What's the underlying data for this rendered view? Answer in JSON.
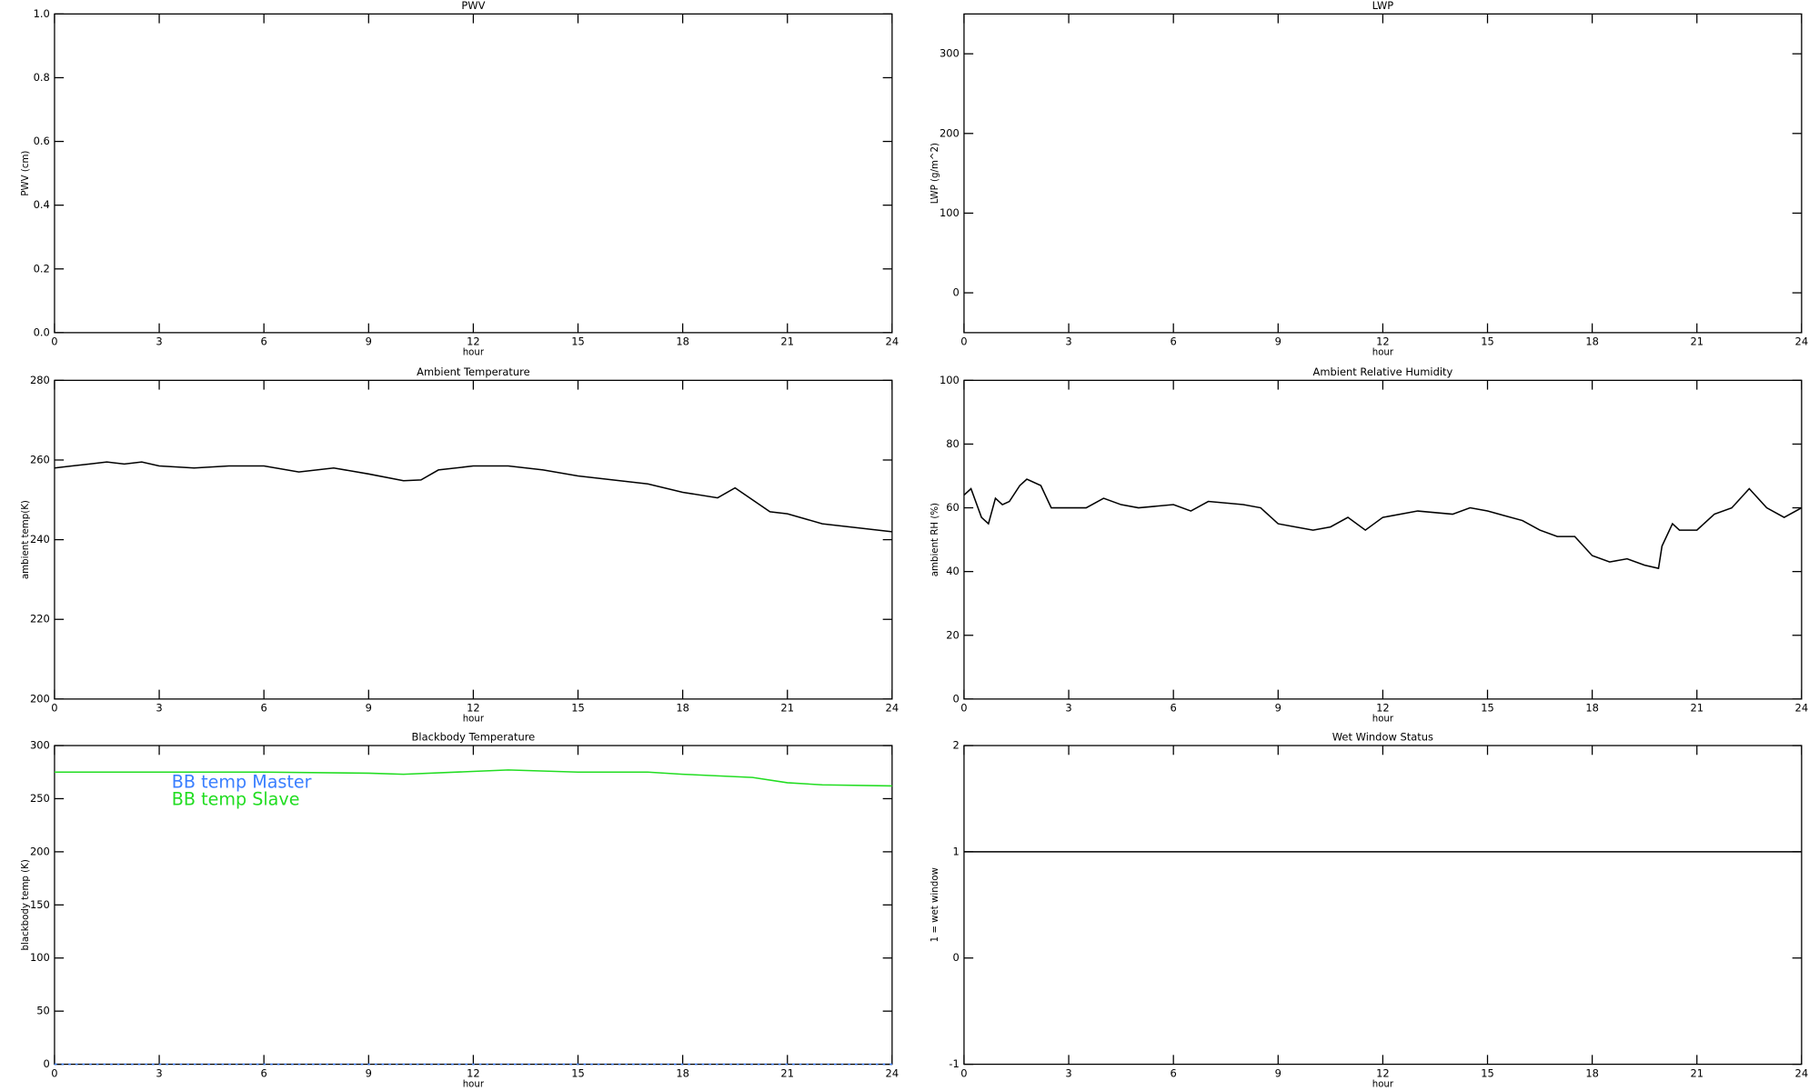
{
  "chart_data": [
    {
      "type": "line",
      "title": "PWV",
      "xlabel": "hour",
      "ylabel": "PWV (cm)",
      "xlim": [
        0,
        24
      ],
      "xticks": [
        0,
        3,
        6,
        9,
        12,
        15,
        18,
        21,
        24
      ],
      "ylim": [
        0,
        1
      ],
      "yticks": [
        {
          "value": 0,
          "label": "0.0"
        },
        0.2,
        0.4,
        0.6,
        0.8,
        {
          "value": 1,
          "label": "1.0"
        }
      ]
    },
    {
      "type": "line",
      "title": "LWP",
      "xlabel": "hour",
      "ylabel": "LWP (g/m^2)",
      "xlim": [
        0,
        24
      ],
      "xticks": [
        0,
        3,
        6,
        9,
        12,
        15,
        18,
        21,
        24
      ],
      "ylim": [
        -50,
        350
      ],
      "yticks": [
        0,
        100,
        200,
        300
      ]
    },
    {
      "type": "line",
      "title": "Ambient Temperature",
      "xlabel": "hour",
      "ylabel": "ambient temp(K)",
      "xlim": [
        0,
        24
      ],
      "xticks": [
        0,
        3,
        6,
        9,
        12,
        15,
        18,
        21,
        24
      ],
      "ylim": [
        200,
        280
      ],
      "yticks": [
        200,
        220,
        240,
        260,
        280
      ],
      "x": [
        0,
        0.5,
        1,
        1.5,
        2,
        2.5,
        3,
        4,
        5,
        6,
        7,
        8,
        9,
        10,
        10.5,
        11,
        12,
        13,
        14,
        15,
        16,
        17,
        18,
        19,
        19.5,
        20,
        20.5,
        21,
        22,
        23,
        24
      ],
      "series": [
        {
          "color": "#000000",
          "values": [
            258,
            258.5,
            259,
            259.5,
            259,
            259.5,
            258.5,
            258,
            258.5,
            258.5,
            257,
            258,
            256.5,
            254.8,
            255,
            257.5,
            258.5,
            258.5,
            257.5,
            256,
            255,
            254,
            251.9,
            250.5,
            253,
            250,
            247,
            246.5,
            244,
            243,
            242
          ]
        }
      ]
    },
    {
      "type": "line",
      "title": "Ambient Relative Humidity",
      "xlabel": "hour",
      "ylabel": "ambient RH (%)",
      "xlim": [
        0,
        24
      ],
      "xticks": [
        0,
        3,
        6,
        9,
        12,
        15,
        18,
        21,
        24
      ],
      "ylim": [
        0,
        100
      ],
      "yticks": [
        0,
        20,
        40,
        60,
        80,
        100
      ],
      "x": [
        0,
        0.2,
        0.5,
        0.7,
        0.9,
        1.1,
        1.3,
        1.6,
        1.8,
        2.2,
        2.5,
        3,
        3.5,
        4,
        4.5,
        5,
        6,
        6.5,
        7,
        8,
        8.5,
        9,
        9.5,
        10,
        10.5,
        11,
        11.5,
        12,
        13,
        14,
        14.5,
        15,
        16,
        16.5,
        17,
        17.5,
        18,
        18.5,
        19,
        19.5,
        19.9,
        20,
        20.3,
        20.5,
        21,
        21.5,
        22,
        22.5,
        23,
        23.5,
        24
      ],
      "series": [
        {
          "color": "#000000",
          "values": [
            64,
            66,
            57,
            55,
            63,
            61,
            62,
            67,
            69,
            67,
            60,
            60,
            60,
            63,
            61,
            60,
            61,
            59,
            62,
            61,
            60,
            55,
            54,
            53,
            54,
            57,
            53,
            57,
            59,
            58,
            60,
            59,
            56,
            53,
            51,
            51,
            45,
            43,
            44,
            42,
            41,
            48,
            55,
            53,
            53,
            58,
            60,
            66,
            60,
            57,
            60
          ]
        }
      ]
    },
    {
      "type": "line",
      "title": "Blackbody Temperature",
      "xlabel": "hour",
      "ylabel": "blackbody temp (K)",
      "xlim": [
        0,
        24
      ],
      "xticks": [
        0,
        3,
        6,
        9,
        12,
        15,
        18,
        21,
        24
      ],
      "ylim": [
        0,
        300
      ],
      "yticks": [
        0,
        50,
        100,
        150,
        200,
        250,
        300
      ],
      "x": [
        0,
        3,
        6,
        9,
        10,
        13,
        15,
        17,
        18,
        20,
        21,
        22,
        24
      ],
      "series": [
        {
          "name": "BB temp Master",
          "color": "#3a7fff",
          "dashed": true,
          "values": [
            0,
            0,
            0,
            0,
            0,
            0,
            0,
            0,
            0,
            0,
            0,
            0,
            0
          ]
        },
        {
          "name": "BB temp Slave",
          "color": "#22dd22",
          "values": [
            275,
            275,
            275,
            274,
            273,
            277,
            275,
            275,
            273,
            270,
            265,
            263,
            262
          ]
        }
      ]
    },
    {
      "type": "line",
      "title": "Wet Window Status",
      "xlabel": "hour",
      "ylabel": "1 = wet window",
      "xlim": [
        0,
        24
      ],
      "xticks": [
        0,
        3,
        6,
        9,
        12,
        15,
        18,
        21,
        24
      ],
      "ylim": [
        -1,
        2
      ],
      "yticks": [
        -1,
        0,
        1,
        2
      ],
      "x": [
        0,
        24
      ],
      "series": [
        {
          "color": "#000000",
          "values": [
            1,
            1
          ]
        }
      ]
    }
  ]
}
